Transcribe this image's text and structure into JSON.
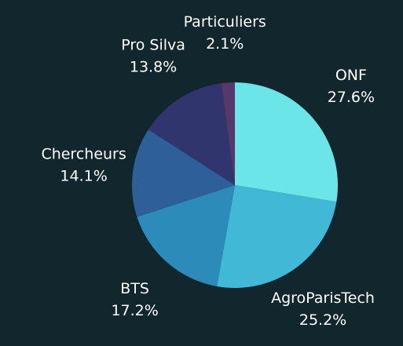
{
  "chart_data": {
    "type": "pie",
    "categories": [
      "ONF",
      "AgroParisTech",
      "BTS",
      "Chercheurs",
      "Pro Silva",
      "Particuliers"
    ],
    "values": [
      27.6,
      25.2,
      17.2,
      14.1,
      13.8,
      2.1
    ],
    "value_labels": [
      "27.6%",
      "25.2%",
      "17.2%",
      "14.1%",
      "13.8%",
      "2.1%"
    ],
    "colors": [
      "#6ce5e8",
      "#41b8d5",
      "#2d8bba",
      "#2f5f98",
      "#31356e",
      "#56386a"
    ]
  }
}
